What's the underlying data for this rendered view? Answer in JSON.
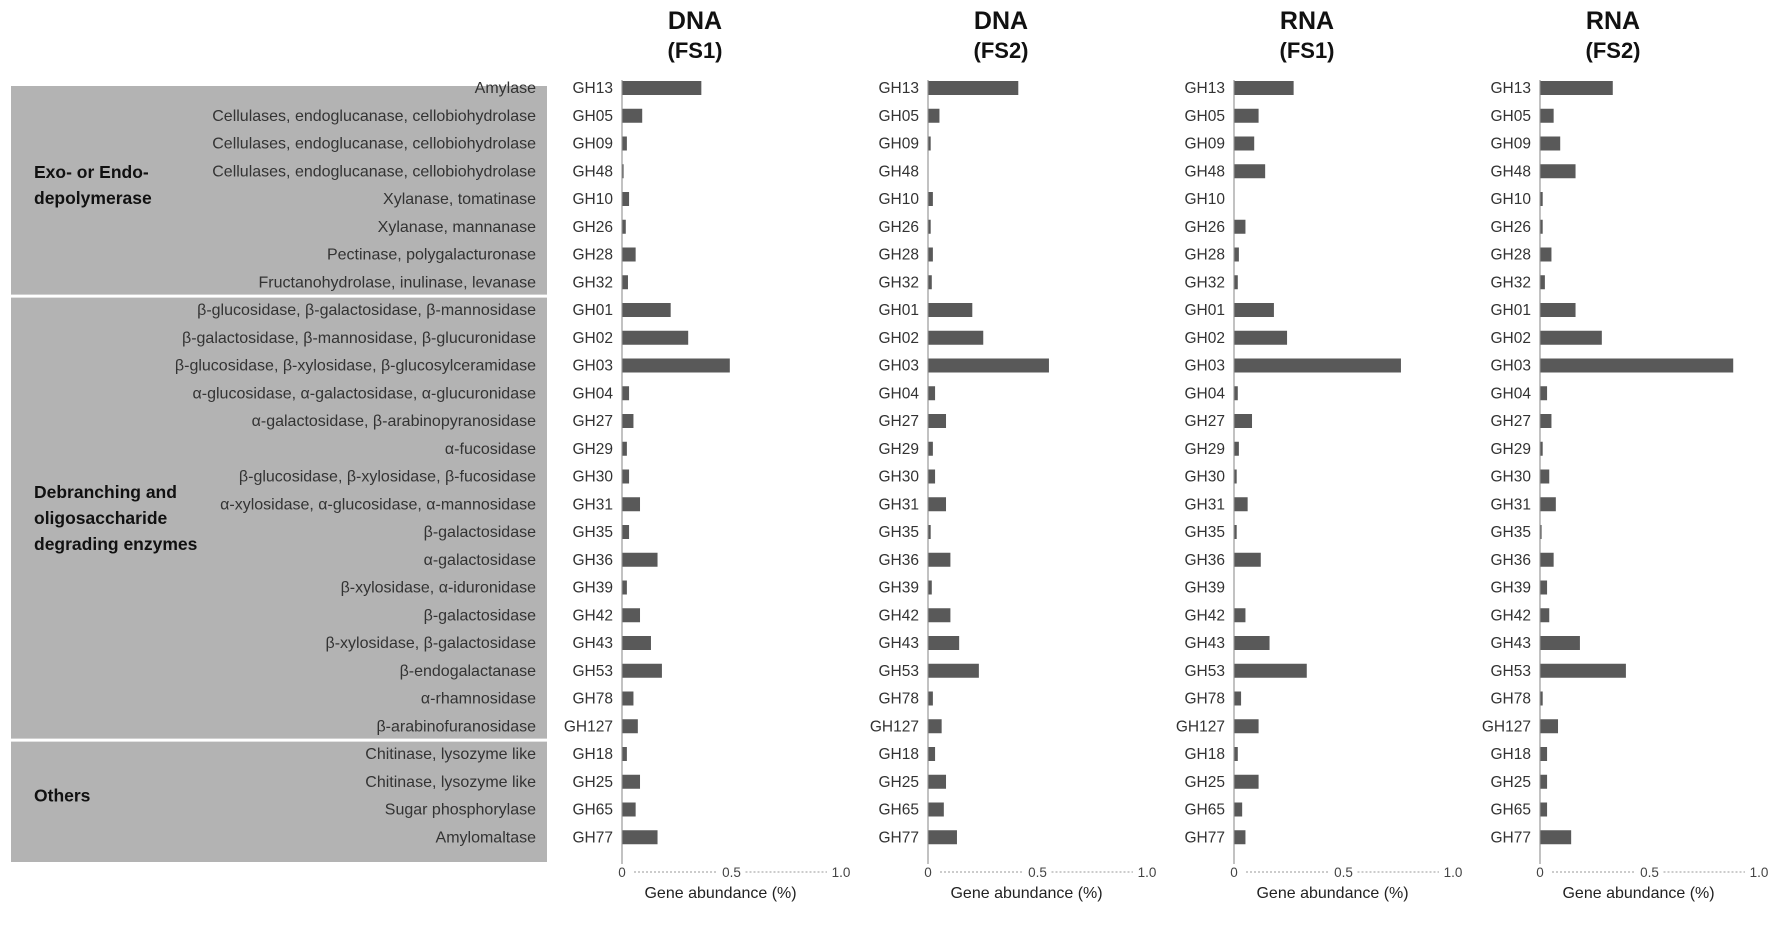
{
  "chart_data": {
    "type": "bar",
    "orientation": "horizontal",
    "xlabel": "Gene abundance (%)",
    "xlim": [
      0,
      1.0
    ],
    "xticks": [
      "0",
      "0.5",
      "1.0"
    ],
    "families": [
      "GH13",
      "GH05",
      "GH09",
      "GH48",
      "GH10",
      "GH26",
      "GH28",
      "GH32",
      "GH01",
      "GH02",
      "GH03",
      "GH04",
      "GH27",
      "GH29",
      "GH30",
      "GH31",
      "GH35",
      "GH36",
      "GH39",
      "GH42",
      "GH43",
      "GH53",
      "GH78",
      "GH127",
      "GH18",
      "GH25",
      "GH65",
      "GH77"
    ],
    "activities": [
      "Amylase",
      "Cellulases, endoglucanase, cellobiohydrolase",
      "Cellulases, endoglucanase, cellobiohydrolase",
      "Cellulases, endoglucanase, cellobiohydrolase",
      "Xylanase, tomatinase",
      "Xylanase, mannanase",
      "Pectinase, polygalacturonase",
      "Fructanohydrolase, inulinase, levanase",
      "β-glucosidase, β-galactosidase, β-mannosidase",
      "β-galactosidase, β-mannosidase, β-glucuronidase",
      "β-glucosidase, β-xylosidase, β-glucosylceramidase",
      "α-glucosidase, α-galactosidase, α-glucuronidase",
      "α-galactosidase, β-arabinopyranosidase",
      "α-fucosidase",
      "β-glucosidase, β-xylosidase, β-fucosidase",
      "α-xylosidase, α-glucosidase, α-mannosidase",
      "β-galactosidase",
      "α-galactosidase",
      "β-xylosidase, α-iduronidase",
      "β-galactosidase",
      "β-xylosidase, β-galactosidase",
      "β-endogalactanase",
      "α-rhamnosidase",
      "β-arabinofuranosidase",
      "Chitinase, lysozyme like",
      "Chitinase, lysozyme like",
      "Sugar phosphorylase",
      "Amylomaltase"
    ],
    "groups": [
      {
        "name": "Exo- or Endo-depolymerase",
        "lines": [
          "Exo- or Endo-",
          "depolymerase"
        ],
        "start": 0,
        "end": 7
      },
      {
        "name": "Debranching and oligosaccharide degrading enzymes",
        "lines": [
          "Debranching and",
          "oligosaccharide",
          "degrading enzymes"
        ],
        "start": 8,
        "end": 23
      },
      {
        "name": "Others",
        "lines": [
          "Others"
        ],
        "start": 24,
        "end": 27
      }
    ],
    "series": [
      {
        "name": "DNA (FS1)",
        "title": "DNA",
        "subtitle": "(FS1)",
        "values": [
          0.36,
          0.09,
          0.02,
          0.005,
          0.03,
          0.015,
          0.06,
          0.025,
          0.22,
          0.3,
          0.49,
          0.03,
          0.05,
          0.02,
          0.03,
          0.08,
          0.03,
          0.16,
          0.02,
          0.08,
          0.13,
          0.18,
          0.05,
          0.07,
          0.02,
          0.08,
          0.06,
          0.16
        ]
      },
      {
        "name": "DNA (FS2)",
        "title": "DNA",
        "subtitle": "(FS2)",
        "values": [
          0.41,
          0.05,
          0.01,
          0.0,
          0.02,
          0.01,
          0.02,
          0.015,
          0.2,
          0.25,
          0.55,
          0.03,
          0.08,
          0.02,
          0.03,
          0.08,
          0.01,
          0.1,
          0.015,
          0.1,
          0.14,
          0.23,
          0.02,
          0.06,
          0.03,
          0.08,
          0.07,
          0.13
        ]
      },
      {
        "name": "RNA (FS1)",
        "title": "RNA",
        "subtitle": "(FS1)",
        "values": [
          0.27,
          0.11,
          0.09,
          0.14,
          0.0,
          0.05,
          0.02,
          0.015,
          0.18,
          0.24,
          0.76,
          0.015,
          0.08,
          0.02,
          0.01,
          0.06,
          0.01,
          0.12,
          0.0,
          0.05,
          0.16,
          0.33,
          0.03,
          0.11,
          0.015,
          0.11,
          0.035,
          0.05
        ]
      },
      {
        "name": "RNA (FS2)",
        "title": "RNA",
        "subtitle": "(FS2)",
        "values": [
          0.33,
          0.06,
          0.09,
          0.16,
          0.01,
          0.01,
          0.05,
          0.02,
          0.16,
          0.28,
          0.88,
          0.03,
          0.05,
          0.01,
          0.04,
          0.07,
          0.005,
          0.06,
          0.03,
          0.04,
          0.18,
          0.39,
          0.01,
          0.08,
          0.03,
          0.03,
          0.03,
          0.14
        ]
      }
    ]
  },
  "colors": {
    "bar": "#595959",
    "label_panel": "#b3b3b3",
    "axis": "#999999"
  }
}
